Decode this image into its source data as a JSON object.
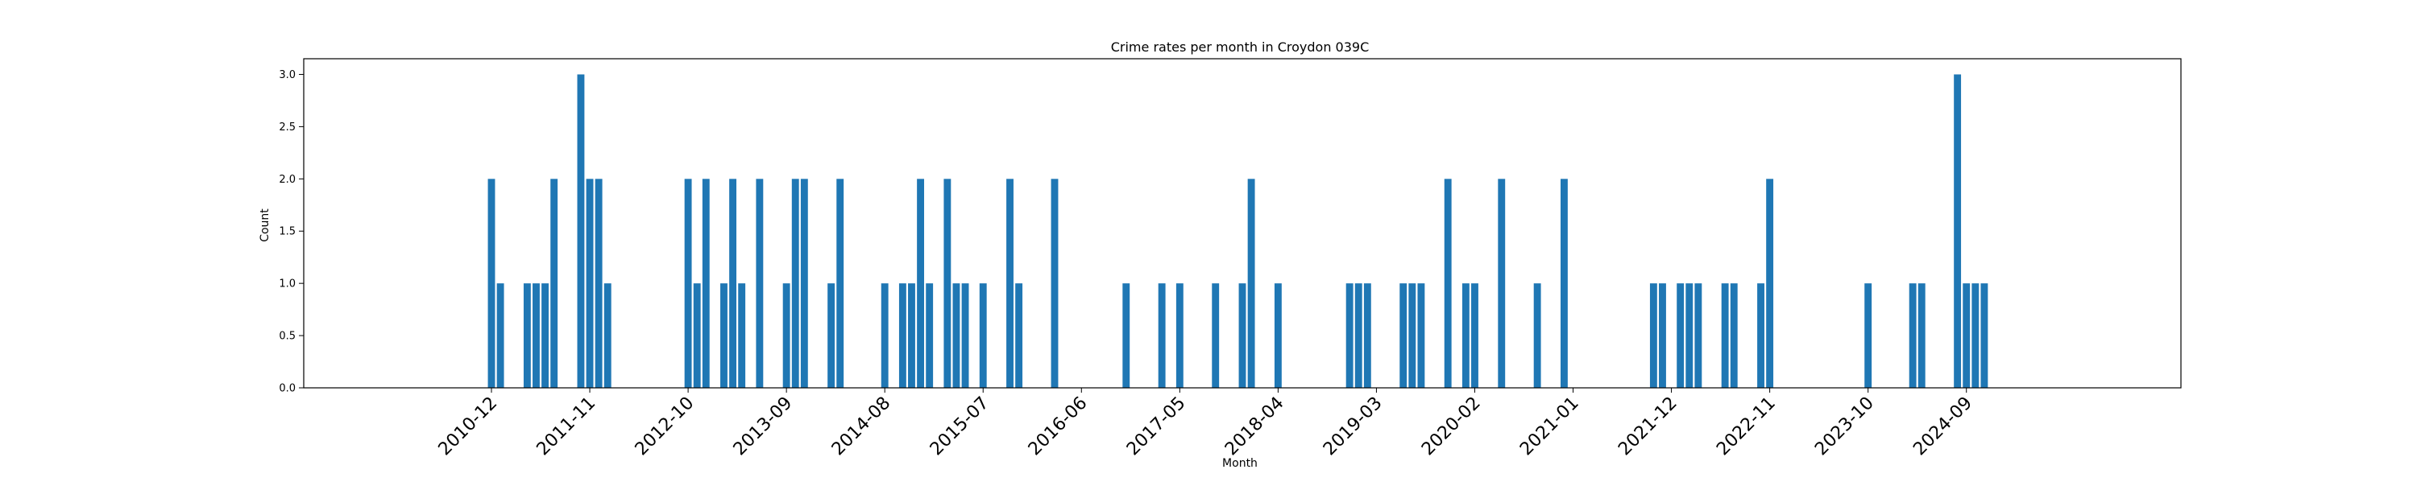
{
  "chart_data": {
    "type": "bar",
    "title": "Crime rates per month in Croydon 039C",
    "xlabel": "Month",
    "ylabel": "Count",
    "ylim": [
      0,
      3.15
    ],
    "yticks": [
      "0.0",
      "0.5",
      "1.0",
      "1.5",
      "2.0",
      "2.5",
      "3.0"
    ],
    "xticks": [
      "2010-12",
      "2011-11",
      "2012-10",
      "2013-09",
      "2014-08",
      "2015-07",
      "2016-06",
      "2017-05",
      "2018-04",
      "2019-03",
      "2020-02",
      "2021-01",
      "2021-12",
      "2022-11",
      "2023-10",
      "2024-09"
    ],
    "color": "#1f77b4",
    "grid": false,
    "categories": [
      "2010-12",
      "2011-01",
      "2011-04",
      "2011-05",
      "2011-06",
      "2011-07",
      "2011-10",
      "2011-11",
      "2011-12",
      "2012-01",
      "2012-10",
      "2012-11",
      "2012-12",
      "2013-02",
      "2013-03",
      "2013-04",
      "2013-06",
      "2013-09",
      "2013-10",
      "2013-11",
      "2014-02",
      "2014-03",
      "2014-08",
      "2014-10",
      "2014-11",
      "2014-12",
      "2015-01",
      "2015-03",
      "2015-04",
      "2015-05",
      "2015-07",
      "2015-10",
      "2015-11",
      "2016-03",
      "2016-11",
      "2017-03",
      "2017-05",
      "2017-09",
      "2017-12",
      "2018-01",
      "2018-04",
      "2018-12",
      "2019-01",
      "2019-02",
      "2019-06",
      "2019-07",
      "2019-08",
      "2019-11",
      "2020-01",
      "2020-02",
      "2020-05",
      "2020-09",
      "2020-12",
      "2021-10",
      "2021-11",
      "2022-01",
      "2022-02",
      "2022-03",
      "2022-06",
      "2022-07",
      "2022-10",
      "2022-11",
      "2023-10",
      "2024-03",
      "2024-04",
      "2024-08",
      "2024-09",
      "2024-10",
      "2024-11"
    ],
    "values": [
      2,
      1,
      1,
      1,
      1,
      2,
      3,
      2,
      2,
      1,
      2,
      1,
      2,
      1,
      2,
      1,
      2,
      1,
      2,
      2,
      1,
      2,
      1,
      1,
      1,
      2,
      1,
      2,
      1,
      1,
      1,
      2,
      1,
      2,
      1,
      1,
      1,
      1,
      1,
      2,
      1,
      1,
      1,
      1,
      1,
      1,
      1,
      2,
      1,
      1,
      2,
      1,
      2,
      1,
      1,
      1,
      1,
      1,
      1,
      1,
      1,
      2,
      1,
      1,
      1,
      3,
      1,
      1,
      1
    ]
  }
}
